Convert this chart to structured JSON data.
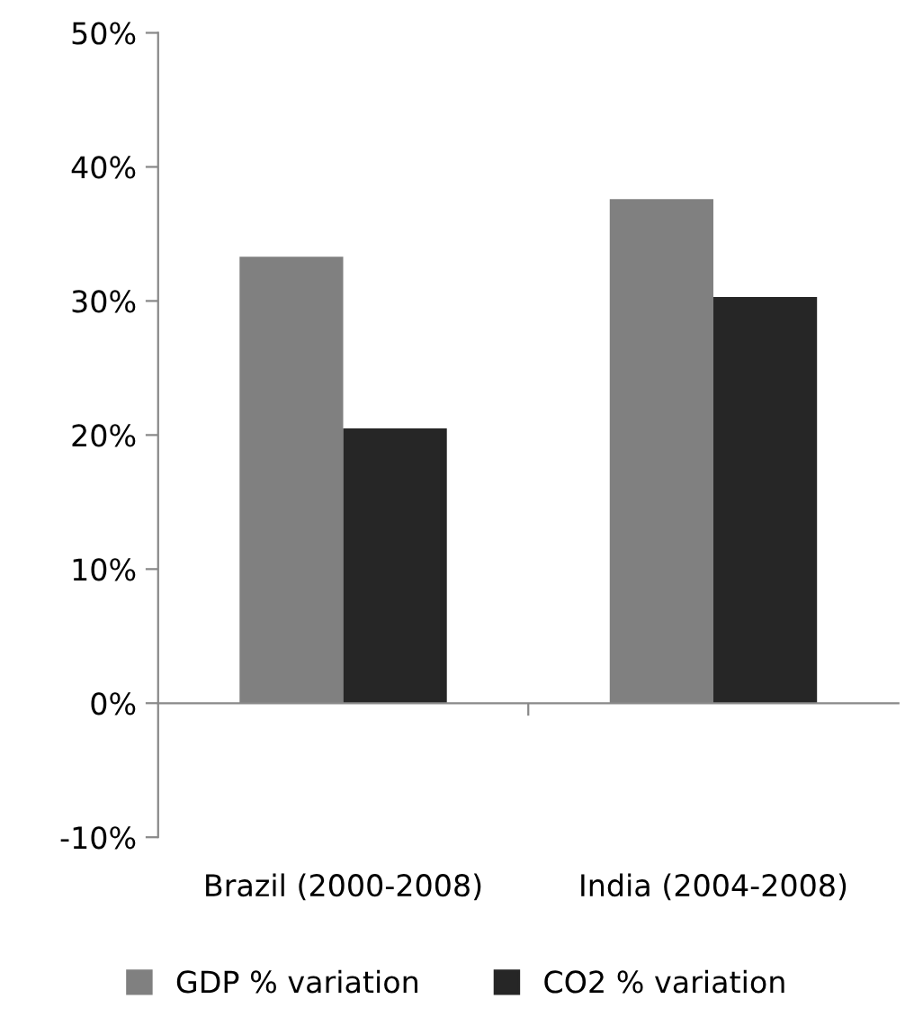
{
  "chart_data": {
    "type": "bar",
    "categories": [
      "Brazil (2000-2008)",
      "India (2004-2008)"
    ],
    "series": [
      {
        "name": "GDP % variation",
        "color": "#808080",
        "values": [
          33.3,
          37.6
        ]
      },
      {
        "name": "CO2 % variation",
        "color": "#262626",
        "values": [
          20.5,
          30.3
        ]
      }
    ],
    "ylim": [
      -10,
      50
    ],
    "yticks": [
      {
        "value": -10,
        "label": "-10%"
      },
      {
        "value": 0,
        "label": "0%"
      },
      {
        "value": 10,
        "label": "10%"
      },
      {
        "value": 20,
        "label": "20%"
      },
      {
        "value": 30,
        "label": "30%"
      },
      {
        "value": 40,
        "label": "40%"
      },
      {
        "value": 50,
        "label": "50%"
      }
    ],
    "legend": "bottom"
  }
}
